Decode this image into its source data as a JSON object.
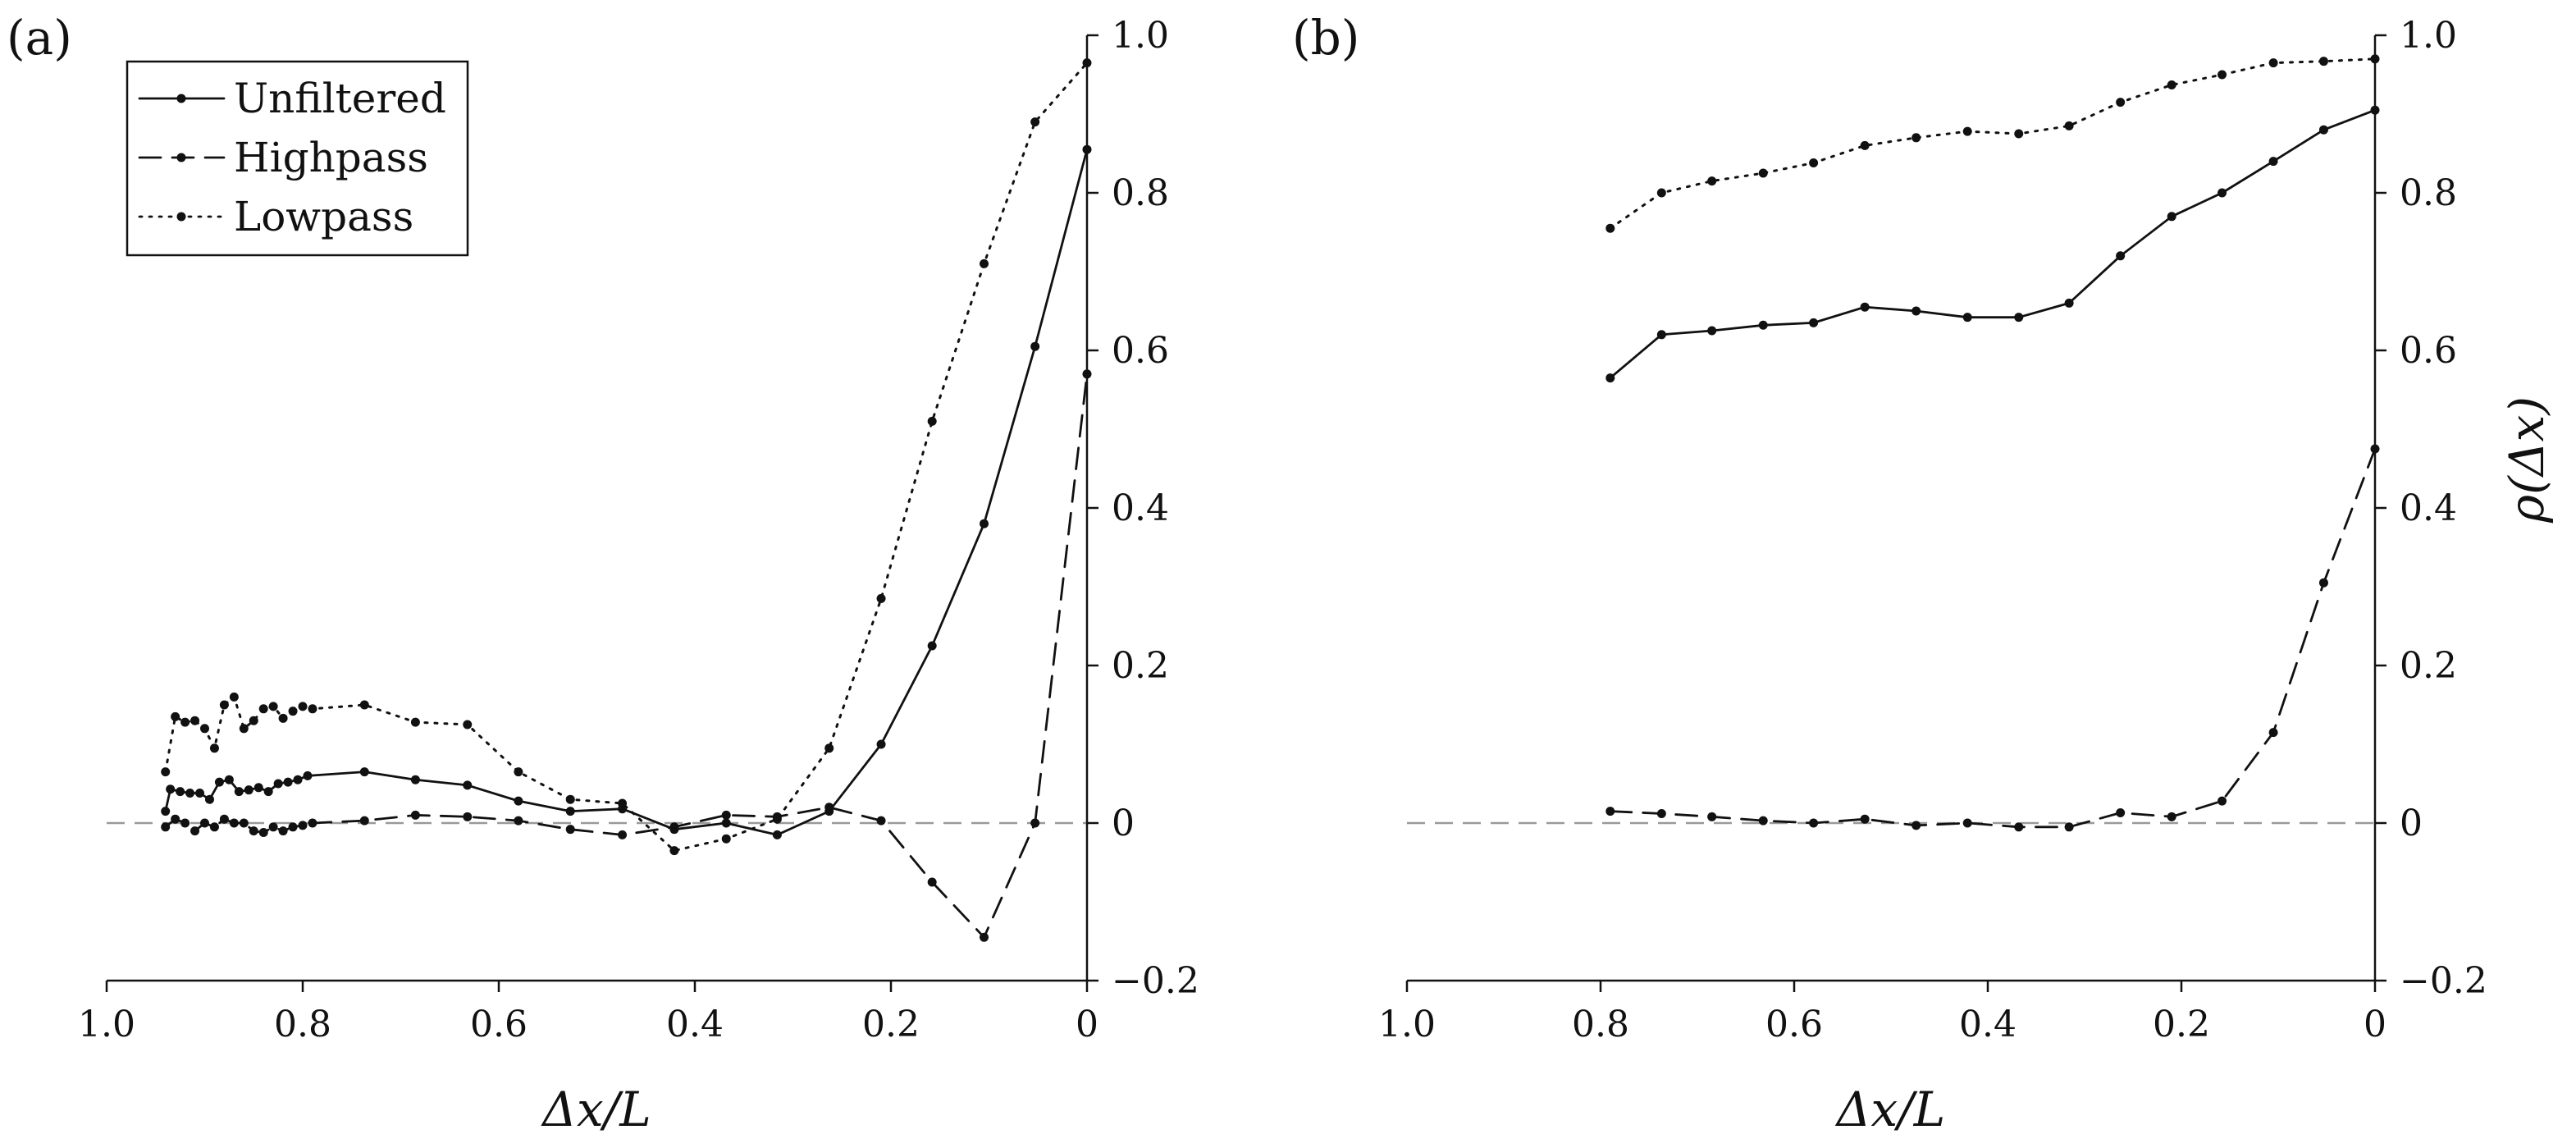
{
  "chart_data": [
    {
      "type": "line",
      "panel_label": "(a)",
      "xlabel": "Δx/L",
      "ylabel": "",
      "xlim": [
        1.0,
        0
      ],
      "x_reversed": true,
      "ylim": [
        -0.2,
        1.0
      ],
      "y_axis_side": "right",
      "x_ticks": [
        1.0,
        0.8,
        0.6,
        0.4,
        0.2,
        0
      ],
      "x_tick_labels": [
        "1.0",
        "0.8",
        "0.6",
        "0.4",
        "0.2",
        "0"
      ],
      "y_ticks": [
        -0.2,
        0,
        0.2,
        0.4,
        0.6,
        0.8,
        1.0
      ],
      "y_tick_labels": [
        "−0.2",
        "0",
        "0.2",
        "0.4",
        "0.6",
        "0.8",
        "1.0"
      ],
      "zero_reference_line": true,
      "legend": {
        "position": "top-left",
        "entries": [
          "Unfiltered",
          "Highpass",
          "Lowpass"
        ]
      },
      "series": [
        {
          "name": "Unfiltered",
          "line_style": "solid",
          "x": [
            0.94,
            0.935,
            0.925,
            0.915,
            0.905,
            0.895,
            0.885,
            0.875,
            0.865,
            0.855,
            0.845,
            0.835,
            0.825,
            0.815,
            0.805,
            0.795,
            0.737,
            0.685,
            0.632,
            0.58,
            0.527,
            0.474,
            0.421,
            0.368,
            0.316,
            0.263,
            0.21,
            0.158,
            0.105,
            0.053,
            0.0
          ],
          "y": [
            0.015,
            0.043,
            0.04,
            0.038,
            0.038,
            0.03,
            0.052,
            0.055,
            0.04,
            0.042,
            0.045,
            0.04,
            0.05,
            0.052,
            0.055,
            0.06,
            0.065,
            0.055,
            0.048,
            0.028,
            0.015,
            0.018,
            -0.008,
            0.0,
            -0.015,
            0.015,
            0.1,
            0.225,
            0.38,
            0.605,
            0.855
          ]
        },
        {
          "name": "Highpass",
          "line_style": "dashed",
          "x": [
            0.94,
            0.93,
            0.92,
            0.91,
            0.9,
            0.89,
            0.88,
            0.87,
            0.86,
            0.85,
            0.84,
            0.83,
            0.82,
            0.81,
            0.8,
            0.79,
            0.737,
            0.685,
            0.632,
            0.58,
            0.527,
            0.474,
            0.421,
            0.368,
            0.316,
            0.263,
            0.21,
            0.158,
            0.105,
            0.053,
            0.0
          ],
          "y": [
            -0.005,
            0.005,
            0.0,
            -0.01,
            0.0,
            -0.005,
            0.005,
            0.0,
            0.0,
            -0.01,
            -0.012,
            -0.005,
            -0.01,
            -0.005,
            -0.003,
            0.0,
            0.003,
            0.01,
            0.008,
            0.003,
            -0.008,
            -0.015,
            -0.005,
            0.01,
            0.008,
            0.02,
            0.003,
            -0.075,
            -0.145,
            0.0,
            0.57
          ]
        },
        {
          "name": "Lowpass",
          "line_style": "dotted",
          "x": [
            0.94,
            0.93,
            0.92,
            0.91,
            0.9,
            0.89,
            0.88,
            0.87,
            0.86,
            0.85,
            0.84,
            0.83,
            0.82,
            0.81,
            0.8,
            0.79,
            0.737,
            0.685,
            0.632,
            0.58,
            0.527,
            0.474,
            0.421,
            0.368,
            0.316,
            0.263,
            0.21,
            0.158,
            0.105,
            0.053,
            0.0
          ],
          "y": [
            0.065,
            0.135,
            0.128,
            0.13,
            0.12,
            0.095,
            0.15,
            0.16,
            0.12,
            0.13,
            0.145,
            0.148,
            0.133,
            0.142,
            0.148,
            0.145,
            0.15,
            0.128,
            0.125,
            0.065,
            0.03,
            0.025,
            -0.035,
            -0.02,
            0.005,
            0.095,
            0.285,
            0.51,
            0.71,
            0.89,
            0.965
          ]
        }
      ]
    },
    {
      "type": "line",
      "panel_label": "(b)",
      "xlabel": "Δx/L",
      "ylabel": "ρ(Δx)",
      "xlim": [
        1.0,
        0
      ],
      "x_reversed": true,
      "ylim": [
        -0.2,
        1.0
      ],
      "y_axis_side": "right",
      "x_ticks": [
        1.0,
        0.8,
        0.6,
        0.4,
        0.2,
        0
      ],
      "x_tick_labels": [
        "1.0",
        "0.8",
        "0.6",
        "0.4",
        "0.2",
        "0"
      ],
      "y_ticks": [
        -0.2,
        0,
        0.2,
        0.4,
        0.6,
        0.8,
        1.0
      ],
      "y_tick_labels": [
        "−0.2",
        "0",
        "0.2",
        "0.4",
        "0.6",
        "0.8",
        "1.0"
      ],
      "zero_reference_line": true,
      "series": [
        {
          "name": "Unfiltered",
          "line_style": "solid",
          "x": [
            0.79,
            0.737,
            0.685,
            0.632,
            0.58,
            0.527,
            0.474,
            0.421,
            0.368,
            0.316,
            0.263,
            0.21,
            0.158,
            0.105,
            0.053,
            0.0
          ],
          "y": [
            0.565,
            0.62,
            0.625,
            0.632,
            0.635,
            0.655,
            0.65,
            0.642,
            0.642,
            0.66,
            0.72,
            0.77,
            0.8,
            0.84,
            0.88,
            0.905
          ]
        },
        {
          "name": "Highpass",
          "line_style": "dashed",
          "x": [
            0.79,
            0.737,
            0.685,
            0.632,
            0.58,
            0.527,
            0.474,
            0.421,
            0.368,
            0.316,
            0.263,
            0.21,
            0.158,
            0.105,
            0.053,
            0.0
          ],
          "y": [
            0.015,
            0.012,
            0.008,
            0.003,
            0.0,
            0.005,
            -0.003,
            0.0,
            -0.005,
            -0.005,
            0.013,
            0.008,
            0.028,
            0.115,
            0.305,
            0.475
          ]
        },
        {
          "name": "Lowpass",
          "line_style": "dotted",
          "x": [
            0.79,
            0.737,
            0.685,
            0.632,
            0.58,
            0.527,
            0.474,
            0.421,
            0.368,
            0.316,
            0.263,
            0.21,
            0.158,
            0.105,
            0.053,
            0.0
          ],
          "y": [
            0.755,
            0.8,
            0.815,
            0.825,
            0.838,
            0.86,
            0.87,
            0.878,
            0.875,
            0.885,
            0.915,
            0.937,
            0.95,
            0.965,
            0.967,
            0.97
          ]
        }
      ]
    }
  ]
}
